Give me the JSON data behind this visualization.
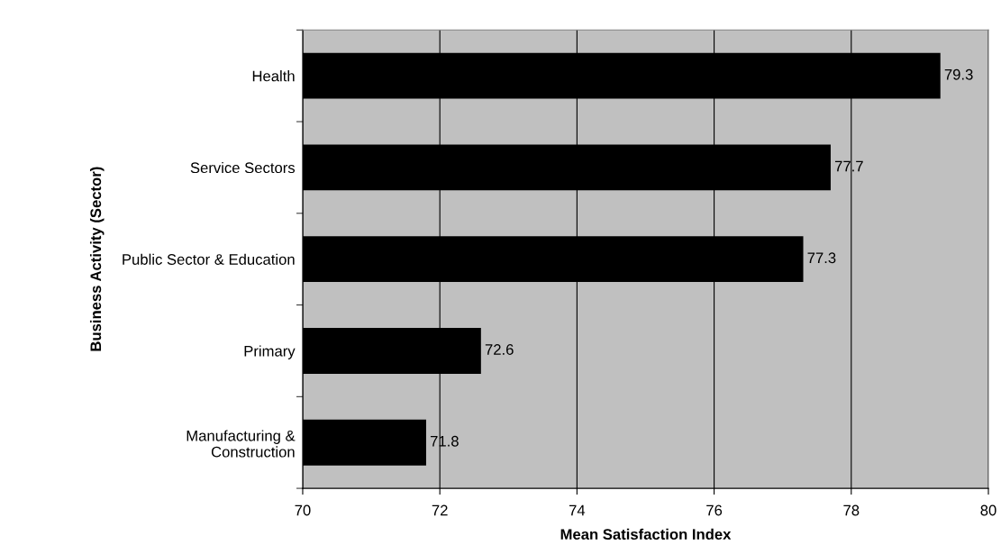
{
  "chart_data": {
    "type": "bar",
    "orientation": "horizontal",
    "categories": [
      "Health",
      "Service Sectors",
      "Public Sector & Education",
      "Primary",
      "Manufacturing &\nConstruction"
    ],
    "values": [
      79.3,
      77.7,
      77.3,
      72.6,
      71.8
    ],
    "color": "#000000",
    "xlabel": "Mean Satisfaction Index",
    "ylabel": "Business Activity (Sector)",
    "xlim": [
      70,
      80
    ],
    "xticks": [
      70,
      72,
      74,
      76,
      78,
      80
    ],
    "grid": "x",
    "data_labels": true
  }
}
